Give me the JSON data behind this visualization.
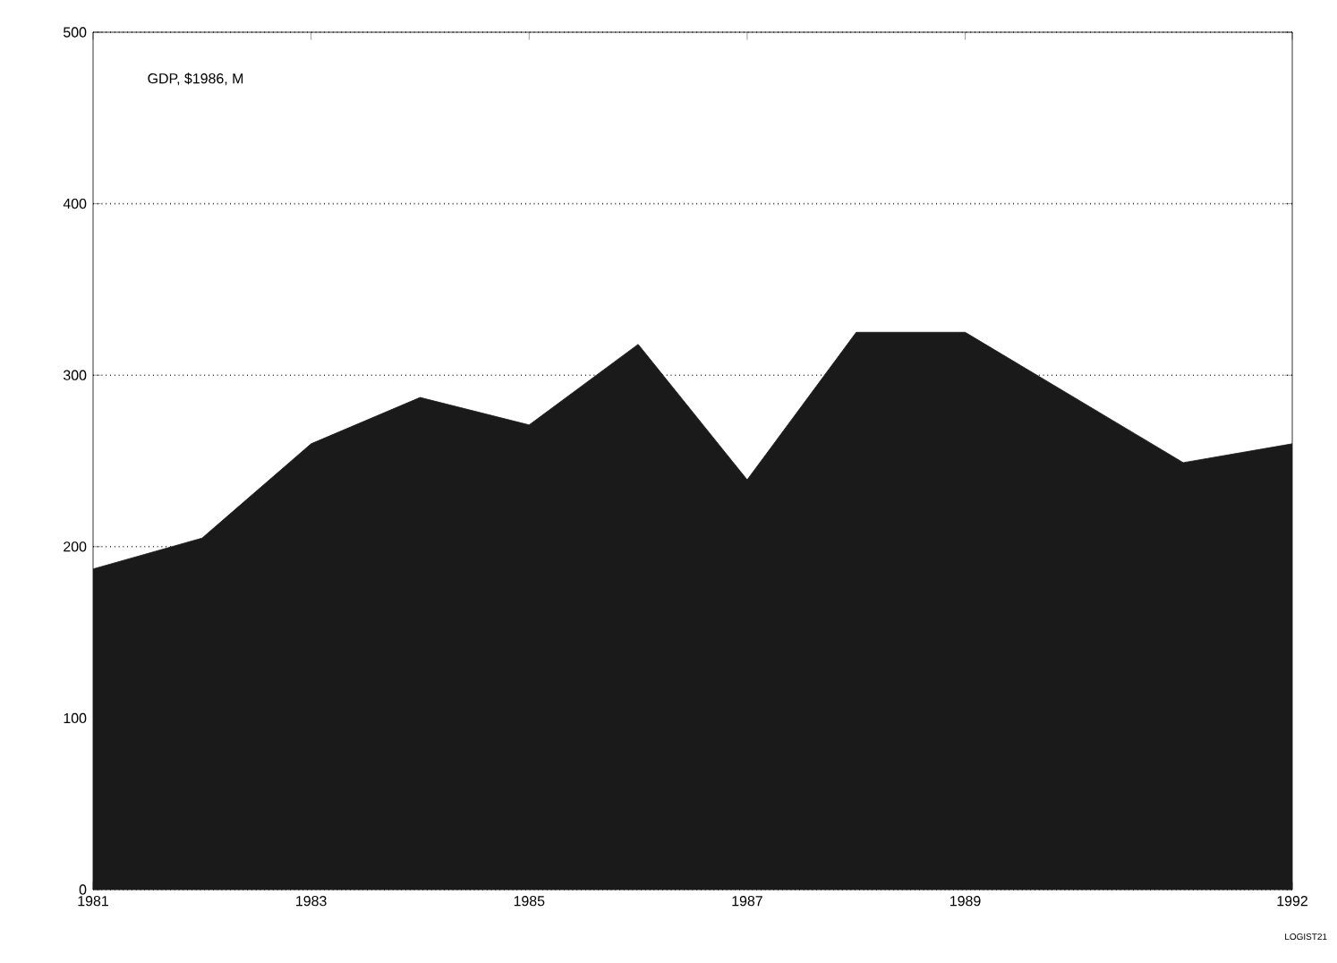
{
  "chart_data": {
    "type": "area",
    "title": "GDP, $1986, M",
    "x": [
      1981,
      1982,
      1983,
      1984,
      1985,
      1986,
      1987,
      1988,
      1989,
      1990,
      1991,
      1992
    ],
    "values": [
      187,
      205,
      260,
      287,
      271,
      318,
      239,
      325,
      325,
      287,
      249,
      260
    ],
    "color": "#1a1a1a",
    "xlim": [
      1981,
      1992
    ],
    "ylim": [
      0,
      500
    ],
    "xticks": [
      1981,
      1983,
      1985,
      1987,
      1989,
      1992
    ],
    "yticks": [
      0,
      100,
      200,
      300,
      400,
      500
    ],
    "grid": "y",
    "annotations": [
      "LOGIST21"
    ]
  }
}
